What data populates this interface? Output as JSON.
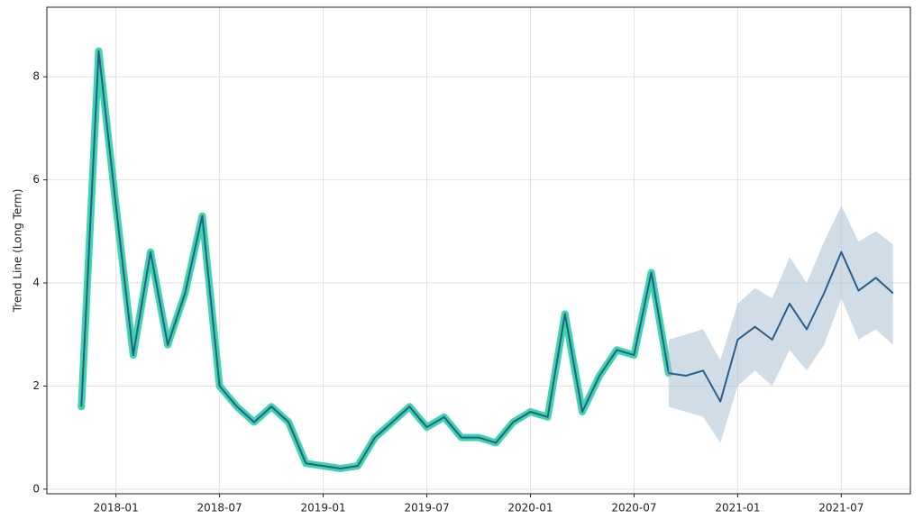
{
  "chart_data": {
    "type": "line",
    "ylabel": "Trend Line (Long Term)",
    "x": [
      "2017-11",
      "2017-12",
      "2018-01",
      "2018-02",
      "2018-03",
      "2018-04",
      "2018-05",
      "2018-06",
      "2018-07",
      "2018-08",
      "2018-09",
      "2018-10",
      "2018-11",
      "2018-12",
      "2019-01",
      "2019-02",
      "2019-03",
      "2019-04",
      "2019-05",
      "2019-06",
      "2019-07",
      "2019-08",
      "2019-09",
      "2019-10",
      "2019-11",
      "2019-12",
      "2020-01",
      "2020-02",
      "2020-03",
      "2020-04",
      "2020-05",
      "2020-06",
      "2020-07",
      "2020-08",
      "2020-09",
      "2020-10",
      "2020-11",
      "2020-12",
      "2021-01",
      "2021-02",
      "2021-03",
      "2021-04",
      "2021-05",
      "2021-06",
      "2021-07",
      "2021-08",
      "2021-09",
      "2021-10"
    ],
    "series": [
      {
        "color": "#2b5d88",
        "halo_color": "#3dd6ac",
        "values": [
          1.6,
          8.5,
          5.5,
          2.6,
          4.6,
          2.8,
          3.8,
          5.3,
          2.0,
          1.6,
          1.3,
          1.6,
          1.3,
          0.5,
          0.45,
          0.4,
          0.45,
          1.0,
          1.3,
          1.6,
          1.2,
          1.4,
          1.0,
          1.0,
          0.9,
          1.3,
          1.5,
          1.4,
          3.4,
          1.5,
          2.2,
          2.7,
          2.6,
          4.2,
          2.25,
          null,
          null,
          null,
          null,
          null,
          null,
          null,
          null,
          null,
          null,
          null,
          null,
          null
        ]
      },
      {
        "color": "#2b5d88",
        "band_color": "#a9bfd1",
        "values": [
          null,
          null,
          null,
          null,
          null,
          null,
          null,
          null,
          null,
          null,
          null,
          null,
          null,
          null,
          null,
          null,
          null,
          null,
          null,
          null,
          null,
          null,
          null,
          null,
          null,
          null,
          null,
          null,
          null,
          null,
          null,
          null,
          null,
          null,
          2.25,
          2.2,
          2.3,
          1.7,
          2.9,
          3.15,
          2.9,
          3.6,
          3.1,
          3.8,
          4.6,
          3.85,
          4.1,
          3.8
        ],
        "lower": [
          null,
          null,
          null,
          null,
          null,
          null,
          null,
          null,
          null,
          null,
          null,
          null,
          null,
          null,
          null,
          null,
          null,
          null,
          null,
          null,
          null,
          null,
          null,
          null,
          null,
          null,
          null,
          null,
          null,
          null,
          null,
          null,
          null,
          null,
          1.6,
          1.5,
          1.4,
          0.9,
          2.0,
          2.3,
          2.0,
          2.7,
          2.3,
          2.8,
          3.7,
          2.9,
          3.1,
          2.8
        ],
        "upper": [
          null,
          null,
          null,
          null,
          null,
          null,
          null,
          null,
          null,
          null,
          null,
          null,
          null,
          null,
          null,
          null,
          null,
          null,
          null,
          null,
          null,
          null,
          null,
          null,
          null,
          null,
          null,
          null,
          null,
          null,
          null,
          null,
          null,
          null,
          2.9,
          3.0,
          3.1,
          2.5,
          3.6,
          3.9,
          3.7,
          4.5,
          4.0,
          4.8,
          5.5,
          4.8,
          5.0,
          4.75
        ]
      }
    ],
    "xlim": [
      "2017-09",
      "2021-11"
    ],
    "xticks": [
      "2018-01",
      "2018-07",
      "2019-01",
      "2019-07",
      "2020-01",
      "2020-07",
      "2021-01",
      "2021-07"
    ],
    "ylim": [
      -0.09,
      9.35
    ],
    "yticks": [
      0,
      2,
      4,
      6,
      8
    ],
    "grid": true
  }
}
